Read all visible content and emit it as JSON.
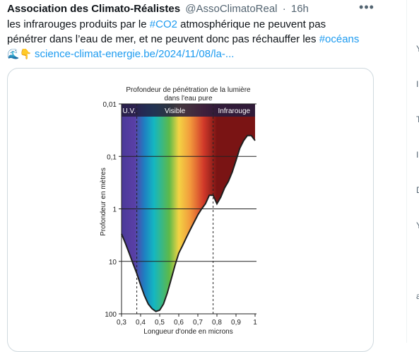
{
  "tweet": {
    "author_name": "Association des Climato-Réalistes",
    "handle": "@AssoClimatoReal",
    "separator": "·",
    "time": "16h",
    "more_icon": "more-dots-icon",
    "text_line1_a": "les infrarouges produits par le ",
    "hashtag1": "#CO2",
    "text_line1_b": " atmosphérique ne peuvent pas",
    "text_line2": "pénétrer dans l’eau de mer, et ne peuvent donc pas réchauffer les ",
    "hashtag2": "#océans",
    "emoji_wave": "🌊",
    "emoji_point": "👇",
    "link": "science-climat-energie.be/2024/11/08/la-..."
  },
  "chart_data": {
    "type": "area",
    "title": "Profondeur de pénétration de la lumière dans l'eau pure",
    "title_line1": "Profondeur de pénétration de la lumière",
    "title_line2": "dans l'eau pure",
    "xlabel": "Longueur d'onde en microns",
    "ylabel": "Profondeur en mètres",
    "y_scale": "log",
    "xlim": [
      0.3,
      1.0
    ],
    "ylim": [
      0.01,
      100
    ],
    "y_inverted": true,
    "x_ticks": [
      "0,3",
      "0,4",
      "0,5",
      "0,6",
      "0,7",
      "0,8",
      "0,9",
      "1"
    ],
    "y_ticks": [
      "0,01",
      "0,1",
      "1",
      "10",
      "100"
    ],
    "regions": [
      {
        "label": "U.V.",
        "from": 0.3,
        "to": 0.38
      },
      {
        "label": "Visible",
        "from": 0.38,
        "to": 0.78
      },
      {
        "label": "Infrarouge",
        "from": 0.78,
        "to": 1.0
      }
    ],
    "boundaries": [
      0.38,
      0.78
    ],
    "x": [
      0.3,
      0.32,
      0.34,
      0.36,
      0.38,
      0.4,
      0.42,
      0.44,
      0.46,
      0.48,
      0.5,
      0.52,
      0.54,
      0.56,
      0.58,
      0.6,
      0.62,
      0.64,
      0.66,
      0.68,
      0.7,
      0.72,
      0.74,
      0.76,
      0.78,
      0.8,
      0.82,
      0.84,
      0.86,
      0.88,
      0.9,
      0.92,
      0.94,
      0.96,
      0.98,
      1.0
    ],
    "depth_m": [
      3,
      4.5,
      7,
      11,
      17,
      28,
      45,
      65,
      80,
      90,
      85,
      65,
      40,
      22,
      12,
      7,
      5,
      3.5,
      2.5,
      1.8,
      1.3,
      1.0,
      0.8,
      0.55,
      0.55,
      0.8,
      0.6,
      0.4,
      0.3,
      0.2,
      0.12,
      0.07,
      0.05,
      0.04,
      0.04,
      0.05
    ],
    "grid": true,
    "colors": {
      "uv": "#4b3a99",
      "violet": "#5a3fa6",
      "blue": "#1e7fc2",
      "cyan": "#14b7c1",
      "green": "#5db94a",
      "yellow": "#f3d444",
      "orange": "#f29a3c",
      "red": "#d23a2a",
      "infrared": "#7a1414",
      "header_bar": "#241c3f",
      "curve": "#1e1e1e"
    }
  },
  "right_column": {
    "glyphs": [
      "Y",
      "I",
      "T",
      "I",
      "D",
      "Y",
      "a"
    ]
  }
}
